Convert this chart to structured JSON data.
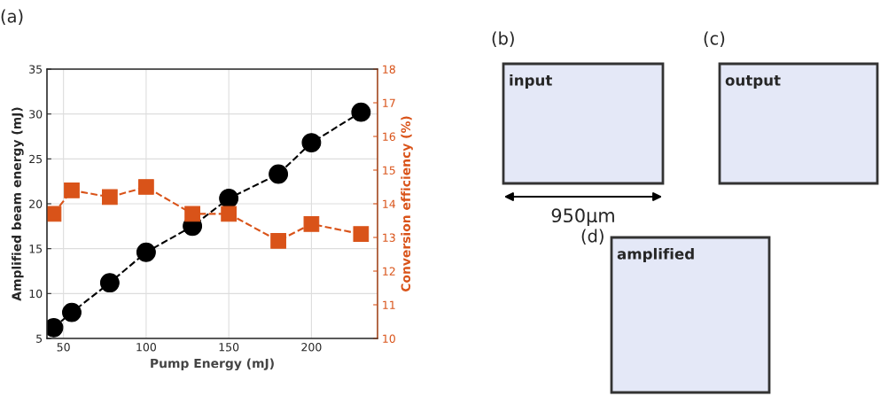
{
  "chart_data": {
    "type": "line",
    "xlabel": "Pump Energy (mJ)",
    "ylabel": "Amplified beam energy (mJ)",
    "y2label": "Conversion efficiency (%)",
    "x": [
      44,
      55,
      78,
      100,
      128,
      150,
      180,
      200,
      230
    ],
    "series": [
      {
        "color": "#000000",
        "marker": "circle",
        "line_style": "dashed",
        "values": [
          6.2,
          7.9,
          11.2,
          14.6,
          17.5,
          20.6,
          23.3,
          26.8,
          30.2
        ]
      },
      {
        "color": "#d95319",
        "marker": "square",
        "line_style": "dashed",
        "axis": "y2",
        "values": [
          13.7,
          14.4,
          14.2,
          14.5,
          13.7,
          13.7,
          12.9,
          13.4,
          13.1
        ]
      }
    ],
    "xlim": [
      40,
      240
    ],
    "xticks": [
      50,
      100,
      150,
      200
    ],
    "ylim": [
      5,
      35
    ],
    "yticks": [
      5,
      10,
      15,
      20,
      25,
      30,
      35
    ],
    "y2lim": [
      10,
      18
    ],
    "y2ticks": [
      10,
      11,
      12,
      13,
      14,
      15,
      16,
      17,
      18
    ],
    "grid": true,
    "annotations": [
      "(a)",
      "(b)",
      "(c)",
      "(d)",
      "input",
      "output",
      "amplified",
      "950μm"
    ]
  }
}
